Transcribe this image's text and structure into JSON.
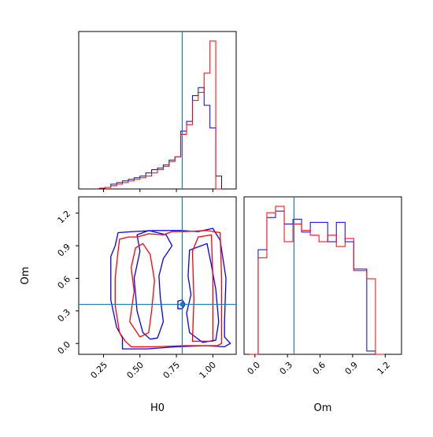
{
  "figure": {
    "type": "corner-plot"
  },
  "colors": {
    "series_a": "#0000ff",
    "series_b": "#ff0000",
    "truth": "#1f77b4"
  },
  "axes": {
    "H0": {
      "label": "H0",
      "range": [
        0.08,
        1.16
      ],
      "ticks": [
        "0.25",
        "0.50",
        "0.75",
        "1.00"
      ],
      "tick_values": [
        0.25,
        0.5,
        0.75,
        1.0
      ]
    },
    "Om": {
      "label": "Om",
      "range": [
        -0.1,
        1.35
      ],
      "ticks": [
        "0.0",
        "0.3",
        "0.6",
        "0.9",
        "1.2"
      ],
      "tick_values": [
        0.0,
        0.3,
        0.6,
        0.9,
        1.2
      ]
    }
  },
  "chart_data": [
    {
      "type": "histogram",
      "variable": "H0",
      "truth": 0.79,
      "bin_edges": [
        0.22,
        0.26,
        0.3,
        0.34,
        0.38,
        0.42,
        0.46,
        0.5,
        0.54,
        0.58,
        0.62,
        0.66,
        0.7,
        0.74,
        0.78,
        0.82,
        0.86,
        0.9,
        0.94,
        0.98,
        1.02,
        1.06
      ],
      "series": [
        {
          "color": "blue",
          "counts": [
            0.5,
            1,
            3,
            4,
            5,
            6,
            7,
            8,
            10,
            12,
            13,
            15,
            18,
            20,
            36,
            42,
            58,
            63,
            52,
            38,
            8
          ]
        },
        {
          "color": "red",
          "counts": [
            0.5,
            1,
            2,
            3,
            4,
            5,
            6,
            7,
            8,
            10,
            12,
            14,
            17,
            20,
            34,
            40,
            55,
            60,
            72,
            92,
            0
          ]
        }
      ]
    },
    {
      "type": "histogram",
      "variable": "Om",
      "truth": 0.36,
      "bin_edges": [
        -0.05,
        0.03,
        0.11,
        0.19,
        0.27,
        0.35,
        0.43,
        0.51,
        0.59,
        0.67,
        0.75,
        0.83,
        0.91,
        1.03,
        1.11,
        1.19
      ],
      "series": [
        {
          "color": "blue",
          "counts": [
            0,
            65,
            85,
            89,
            81,
            84,
            76,
            82,
            82,
            70,
            82,
            70,
            53,
            2,
            0
          ]
        },
        {
          "color": "red",
          "counts": [
            0,
            60,
            88,
            92,
            70,
            81,
            77,
            74,
            70,
            74,
            67,
            72,
            52,
            47,
            0
          ]
        }
      ]
    },
    {
      "type": "contour",
      "x_variable": "H0",
      "y_variable": "Om",
      "truth": [
        0.79,
        0.36
      ],
      "contours": [
        {
          "color": "blue",
          "points": [
            [
              0.38,
              -0.05
            ],
            [
              0.55,
              -0.05
            ],
            [
              0.75,
              -0.03
            ],
            [
              0.95,
              -0.02
            ],
            [
              1.08,
              -0.03
            ],
            [
              1.12,
              0.0
            ],
            [
              1.08,
              0.06
            ],
            [
              1.08,
              0.2
            ],
            [
              1.09,
              0.6
            ],
            [
              1.05,
              0.95
            ],
            [
              1.0,
              1.06
            ],
            [
              0.9,
              1.03
            ],
            [
              0.78,
              1.04
            ],
            [
              0.6,
              1.04
            ],
            [
              0.45,
              1.03
            ],
            [
              0.35,
              1.02
            ],
            [
              0.33,
              0.9
            ],
            [
              0.3,
              0.8
            ],
            [
              0.3,
              0.4
            ],
            [
              0.34,
              0.15
            ],
            [
              0.38,
              0.05
            ]
          ]
        },
        {
          "color": "blue",
          "points": [
            [
              0.62,
              0.05
            ],
            [
              0.66,
              0.2
            ],
            [
              0.64,
              0.42
            ],
            [
              0.63,
              0.62
            ],
            [
              0.66,
              0.78
            ],
            [
              0.72,
              0.9
            ],
            [
              0.68,
              1.0
            ],
            [
              0.56,
              1.04
            ],
            [
              0.48,
              1.0
            ],
            [
              0.5,
              0.85
            ],
            [
              0.46,
              0.6
            ],
            [
              0.48,
              0.3
            ],
            [
              0.52,
              0.1
            ],
            [
              0.57,
              0.04
            ]
          ]
        },
        {
          "color": "blue",
          "points": [
            [
              0.84,
              0.1
            ],
            [
              0.82,
              0.28
            ],
            [
              0.85,
              0.45
            ],
            [
              0.83,
              0.62
            ],
            [
              0.84,
              0.86
            ],
            [
              0.96,
              0.92
            ],
            [
              0.99,
              0.72
            ],
            [
              1.02,
              0.5
            ],
            [
              1.04,
              0.2
            ],
            [
              1.02,
              0.03
            ],
            [
              0.93,
              0.01
            ]
          ]
        },
        {
          "color": "blue",
          "points": [
            [
              0.76,
              0.32
            ],
            [
              0.79,
              0.32
            ],
            [
              0.81,
              0.36
            ],
            [
              0.79,
              0.4
            ],
            [
              0.76,
              0.39
            ]
          ]
        },
        {
          "color": "red",
          "points": [
            [
              0.44,
              -0.03
            ],
            [
              0.6,
              -0.03
            ],
            [
              0.8,
              -0.02
            ],
            [
              1.03,
              -0.02
            ],
            [
              1.06,
              0.0
            ],
            [
              1.06,
              0.6
            ],
            [
              1.05,
              1.02
            ],
            [
              0.96,
              1.04
            ],
            [
              0.8,
              1.03
            ],
            [
              0.72,
              1.03
            ],
            [
              0.66,
              1.0
            ],
            [
              0.56,
              1.01
            ],
            [
              0.48,
              0.98
            ],
            [
              0.42,
              0.98
            ],
            [
              0.36,
              0.96
            ],
            [
              0.35,
              0.85
            ],
            [
              0.33,
              0.6
            ],
            [
              0.33,
              0.35
            ],
            [
              0.36,
              0.1
            ],
            [
              0.4,
              0.02
            ]
          ]
        },
        {
          "color": "red",
          "points": [
            [
              0.43,
              0.2
            ],
            [
              0.46,
              0.48
            ],
            [
              0.44,
              0.7
            ],
            [
              0.47,
              0.88
            ],
            [
              0.52,
              0.92
            ],
            [
              0.57,
              0.82
            ],
            [
              0.6,
              0.58
            ],
            [
              0.58,
              0.3
            ],
            [
              0.56,
              0.1
            ],
            [
              0.5,
              0.06
            ]
          ]
        },
        {
          "color": "red",
          "points": [
            [
              0.86,
              0.02
            ],
            [
              0.87,
              0.4
            ],
            [
              0.86,
              0.85
            ],
            [
              0.9,
              0.98
            ],
            [
              0.99,
              1.0
            ],
            [
              1.0,
              0.6
            ],
            [
              1.0,
              0.02
            ]
          ]
        }
      ]
    }
  ]
}
